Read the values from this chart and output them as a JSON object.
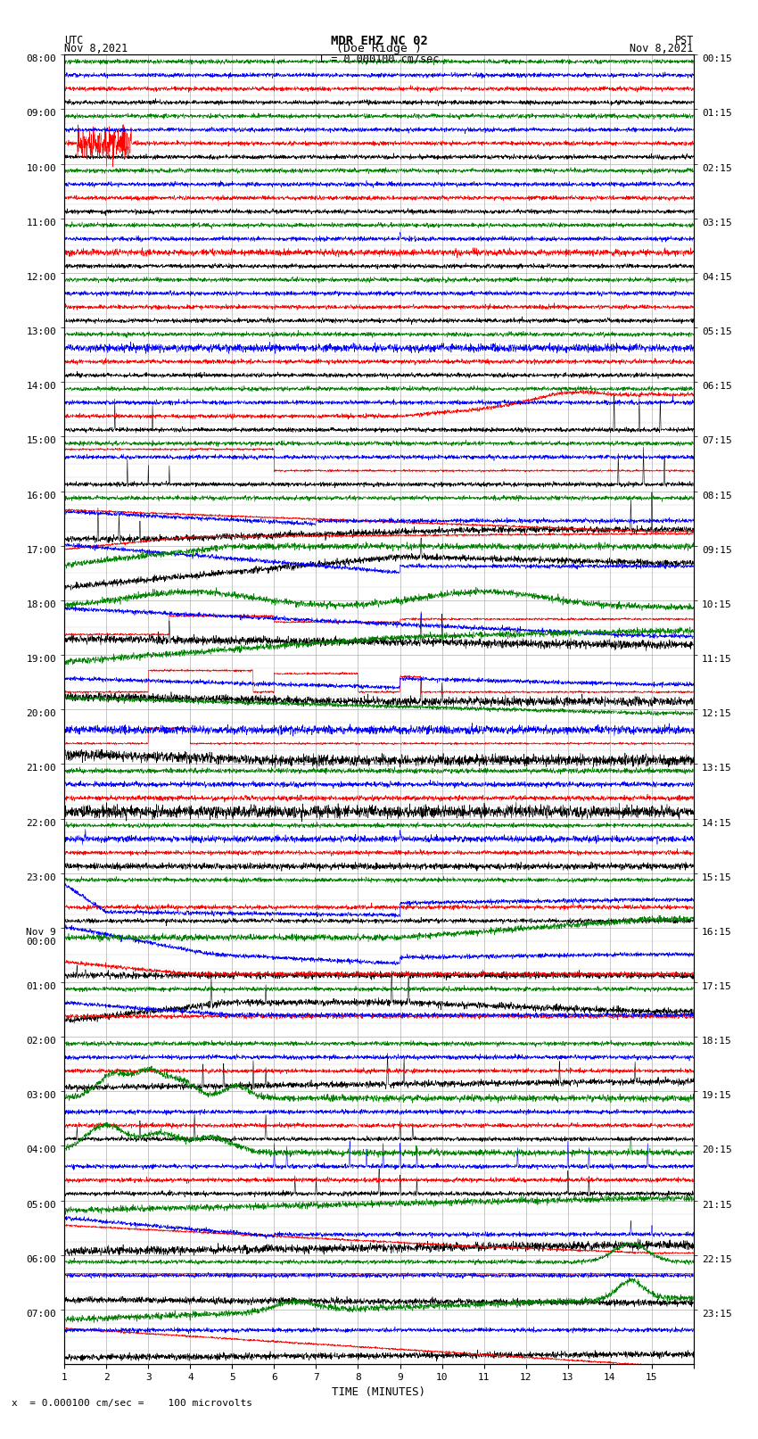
{
  "title_line1": "MDR EHZ NC 02",
  "title_line2": "(Doe Ridge )",
  "scale_text": "I = 0.000100 cm/sec",
  "footer_text": "x  = 0.000100 cm/sec =    100 microvolts",
  "utc_label": "UTC\nNov 8,2021",
  "pst_label": "PST\nNov 8,2021",
  "xlabel": "TIME (MINUTES)",
  "left_times_utc": [
    "08:00",
    "09:00",
    "10:00",
    "11:00",
    "12:00",
    "13:00",
    "14:00",
    "15:00",
    "16:00",
    "17:00",
    "18:00",
    "19:00",
    "20:00",
    "21:00",
    "22:00",
    "23:00",
    "Nov 9\n00:00",
    "01:00",
    "02:00",
    "03:00",
    "04:00",
    "05:00",
    "06:00",
    "07:00"
  ],
  "right_times_pst": [
    "00:15",
    "01:15",
    "02:15",
    "03:15",
    "04:15",
    "05:15",
    "06:15",
    "07:15",
    "08:15",
    "09:15",
    "10:15",
    "11:15",
    "12:15",
    "13:15",
    "14:15",
    "15:15",
    "16:15",
    "17:15",
    "18:15",
    "19:15",
    "20:15",
    "21:15",
    "22:15",
    "23:15"
  ],
  "n_rows": 24,
  "n_cols": 4,
  "minutes": 15,
  "bg_color": "#ffffff",
  "grid_color": "#b0b0b0",
  "colors": [
    "black",
    "red",
    "blue",
    "green"
  ],
  "title_fontsize": 10,
  "label_fontsize": 9,
  "tick_fontsize": 8
}
